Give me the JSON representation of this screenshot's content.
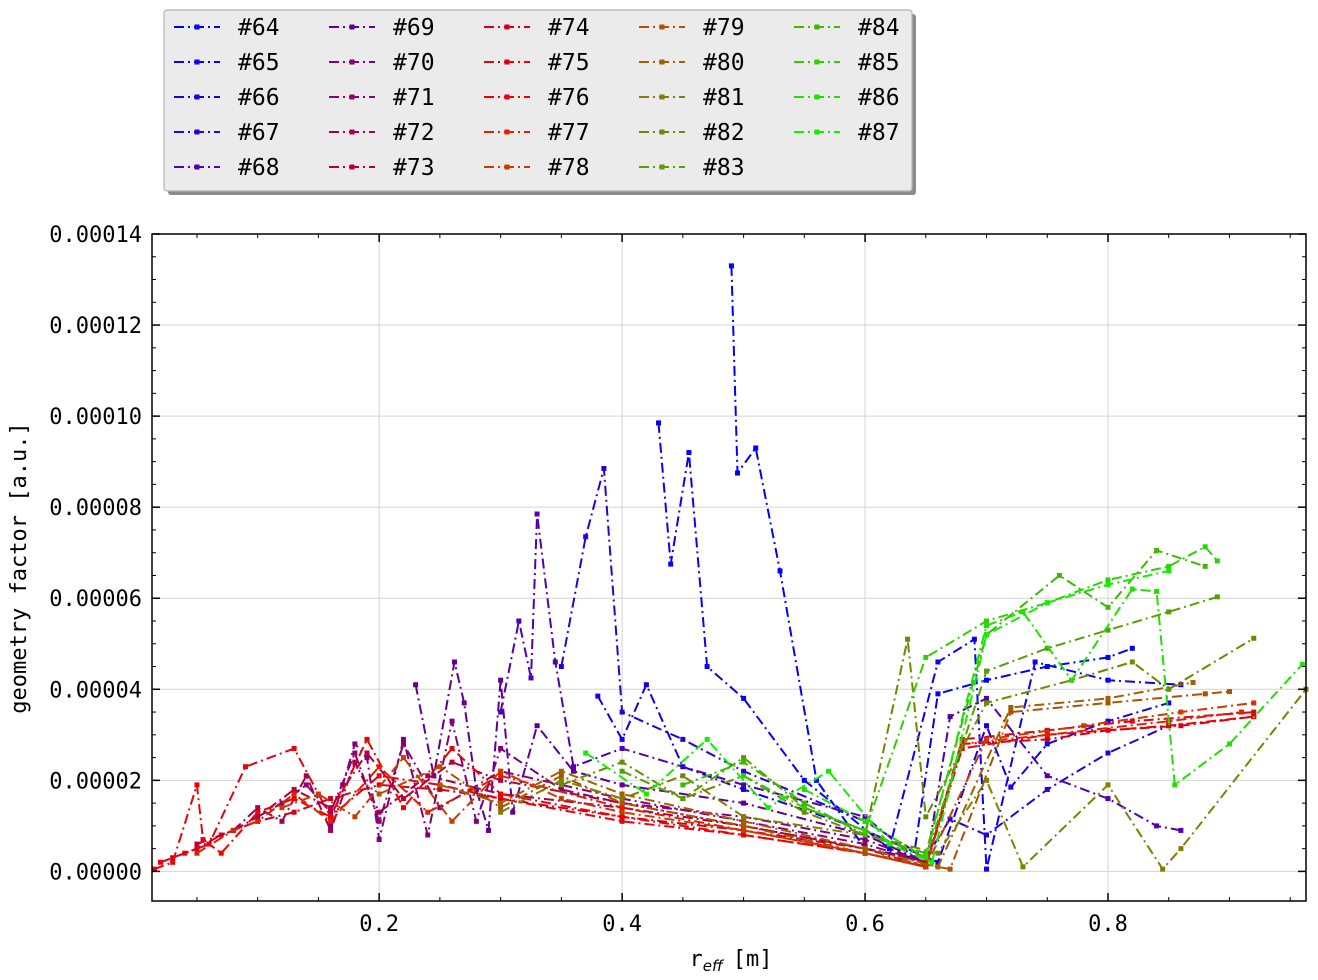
{
  "chart_data": {
    "type": "line",
    "xlabel_main": "r",
    "xlabel_sub": "eff",
    "xlabel_unit": "[m]",
    "ylabel": "geometry factor [a.u.]",
    "xlim": [
      0.013,
      0.963
    ],
    "ylim": [
      -6.5e-06,
      0.00014
    ],
    "x_ticks": [
      0.2,
      0.4,
      0.6,
      0.8
    ],
    "x_tick_labels": [
      "0.2",
      "0.4",
      "0.6",
      "0.8"
    ],
    "y_ticks": [
      0,
      2e-05,
      4e-05,
      6e-05,
      8e-05,
      0.0001,
      0.00012,
      0.00014
    ],
    "y_tick_labels": [
      "0.00000",
      "0.00002",
      "0.00004",
      "0.00006",
      "0.00008",
      "0.00010",
      "0.00012",
      "0.00014"
    ],
    "grid": true,
    "legend_location": "above the plot, top-left, 5 columns",
    "series": [
      {
        "name": "#64",
        "color": "#0000ff",
        "style": "dashdot",
        "x": [
          0.49,
          0.495,
          0.51,
          0.53,
          0.56,
          0.6,
          0.64,
          0.66,
          0.7,
          0.75,
          0.8,
          0.82
        ],
        "y": [
          0.000133,
          8.75e-05,
          9.3e-05,
          6.6e-05,
          2e-05,
          5e-06,
          3e-06,
          3.9e-05,
          4.2e-05,
          4.5e-05,
          4.7e-05,
          4.9e-05
        ]
      },
      {
        "name": "#65",
        "color": "#0a00f5",
        "style": "dashdot",
        "x": [
          0.43,
          0.44,
          0.455,
          0.47,
          0.5,
          0.55,
          0.62,
          0.66,
          0.69,
          0.7,
          0.74,
          0.8,
          0.86
        ],
        "y": [
          9.85e-05,
          6.75e-05,
          9.2e-05,
          4.5e-05,
          3.8e-05,
          2e-05,
          5e-06,
          4.6e-05,
          5.1e-05,
          5e-07,
          4.6e-05,
          4.2e-05,
          4.1e-05
        ]
      },
      {
        "name": "#66",
        "color": "#1500ea",
        "style": "dashdot",
        "x": [
          0.38,
          0.4,
          0.42,
          0.45,
          0.5,
          0.6,
          0.66,
          0.7,
          0.72,
          0.75,
          0.8,
          0.85
        ],
        "y": [
          3.85e-05,
          2.9e-05,
          4.1e-05,
          2.3e-05,
          1.8e-05,
          9e-06,
          2e-06,
          3.2e-05,
          1.85e-05,
          2.8e-05,
          3.3e-05,
          3.7e-05
        ]
      },
      {
        "name": "#67",
        "color": "#2a00d5",
        "style": "dashdot",
        "x": [
          0.35,
          0.37,
          0.385,
          0.4,
          0.45,
          0.5,
          0.6,
          0.65,
          0.67,
          0.7,
          0.75,
          0.8,
          0.85
        ],
        "y": [
          4.5e-05,
          7.35e-05,
          8.85e-05,
          3.5e-05,
          2.9e-05,
          2.2e-05,
          1.1e-05,
          3e-06,
          1.15e-05,
          8e-06,
          1.8e-05,
          2.6e-05,
          3.2e-05
        ]
      },
      {
        "name": "#68",
        "color": "#5000af",
        "style": "dashdot",
        "x": [
          0.3,
          0.315,
          0.325,
          0.33,
          0.345,
          0.36,
          0.4,
          0.5,
          0.6,
          0.65,
          0.67,
          0.7,
          0.75,
          0.8,
          0.84,
          0.86
        ],
        "y": [
          3.5e-05,
          5.5e-05,
          4.25e-05,
          7.85e-05,
          4.6e-05,
          2.3e-05,
          2.7e-05,
          1.9e-05,
          1.2e-05,
          1e-06,
          3.4e-05,
          3.8e-05,
          2.1e-05,
          1.6e-05,
          1e-05,
          9e-06
        ]
      },
      {
        "name": "#69",
        "color": "#600090",
        "style": "dashdot",
        "x": [
          0.23,
          0.245,
          0.262,
          0.27,
          0.28,
          0.29,
          0.3,
          0.31,
          0.33,
          0.36,
          0.4,
          0.5,
          0.6,
          0.65
        ],
        "y": [
          4.1e-05,
          2.1e-05,
          4.6e-05,
          3.7e-05,
          1.8e-05,
          9e-06,
          4.2e-05,
          1.3e-05,
          3.2e-05,
          2.2e-05,
          1.9e-05,
          1.5e-05,
          8e-06,
          2e-06
        ]
      },
      {
        "name": "#70",
        "color": "#800080",
        "style": "dashdot",
        "x": [
          0.16,
          0.17,
          0.18,
          0.19,
          0.2,
          0.22,
          0.24,
          0.26,
          0.28,
          0.3,
          0.35,
          0.4,
          0.5,
          0.6,
          0.65
        ],
        "y": [
          1e-05,
          1.9e-05,
          2.8e-05,
          2.5e-05,
          7e-06,
          2.9e-05,
          8e-06,
          3.3e-05,
          1.1e-05,
          2.7e-05,
          1.8e-05,
          1.5e-05,
          1.2e-05,
          7e-06,
          2e-06
        ]
      },
      {
        "name": "#71",
        "color": "#900070",
        "style": "dashdot",
        "x": [
          0.1,
          0.12,
          0.14,
          0.16,
          0.18,
          0.2,
          0.22,
          0.25,
          0.3,
          0.4,
          0.5,
          0.6,
          0.65
        ],
        "y": [
          1.2e-05,
          1.5e-05,
          1.9e-05,
          1.3e-05,
          2.6e-05,
          1.1e-05,
          2.8e-05,
          1.4e-05,
          2.2e-05,
          1.6e-05,
          1.1e-05,
          6e-06,
          2e-06
        ]
      },
      {
        "name": "#72",
        "color": "#a00055",
        "style": "dashdot",
        "x": [
          0.08,
          0.1,
          0.12,
          0.14,
          0.16,
          0.18,
          0.2,
          0.24,
          0.3,
          0.4,
          0.5,
          0.6,
          0.65
        ],
        "y": [
          9e-06,
          1.4e-05,
          1.1e-05,
          2.1e-05,
          9e-06,
          2.4e-05,
          1.3e-05,
          2.1e-05,
          1.7e-05,
          1.4e-05,
          1e-05,
          5e-06,
          2e-06
        ]
      },
      {
        "name": "#73",
        "color": "#b5003a",
        "style": "dashdot",
        "x": [
          0.05,
          0.08,
          0.1,
          0.13,
          0.16,
          0.19,
          0.22,
          0.26,
          0.3,
          0.4,
          0.5,
          0.6,
          0.65
        ],
        "y": [
          6e-06,
          9e-06,
          1.2e-05,
          1.8e-05,
          1.4e-05,
          2.6e-05,
          1.6e-05,
          2.4e-05,
          2e-05,
          1.5e-05,
          1e-05,
          5e-06,
          2e-06
        ]
      },
      {
        "name": "#74",
        "color": "#d0001a",
        "style": "dashdot",
        "x": [
          0.03,
          0.05,
          0.07,
          0.1,
          0.13,
          0.16,
          0.2,
          0.25,
          0.3,
          0.4,
          0.5,
          0.6,
          0.65,
          0.68,
          0.75,
          0.8,
          0.86,
          0.92
        ],
        "y": [
          3e-06,
          5e-06,
          8e-06,
          1.1e-05,
          1.3e-05,
          1.6e-05,
          1.9e-05,
          1.8e-05,
          1.6e-05,
          1.2e-05,
          9e-06,
          5e-06,
          1e-06,
          2.8e-05,
          2.9e-05,
          3.1e-05,
          3.2e-05,
          3.4e-05
        ]
      },
      {
        "name": "#75",
        "color": "#e60010",
        "style": "dashdot",
        "x": [
          0.02,
          0.04,
          0.06,
          0.09,
          0.13,
          0.16,
          0.2,
          0.25,
          0.3,
          0.4,
          0.5,
          0.6,
          0.65,
          0.68,
          0.75,
          0.82,
          0.92
        ],
        "y": [
          2e-06,
          4e-06,
          6e-06,
          2.3e-05,
          2.7e-05,
          1.2e-05,
          2.1e-05,
          1.9e-05,
          1.6e-05,
          1.1e-05,
          8e-06,
          4e-06,
          1e-06,
          2.9e-05,
          3.1e-05,
          3.3e-05,
          3.5e-05
        ]
      },
      {
        "name": "#76",
        "color": "#f00000",
        "style": "dashdot",
        "x": [
          0.015,
          0.03,
          0.05,
          0.055,
          0.07,
          0.1,
          0.13,
          0.16,
          0.19,
          0.22,
          0.26,
          0.3,
          0.4,
          0.5,
          0.6,
          0.65,
          0.68,
          0.75,
          0.85,
          0.92
        ],
        "y": [
          5e-07,
          2e-06,
          1.9e-05,
          7e-06,
          4e-06,
          1.3e-05,
          1.6e-05,
          1.2e-05,
          2.9e-05,
          1.4e-05,
          2.7e-05,
          1.7e-05,
          1.2e-05,
          8e-06,
          4e-06,
          1e-06,
          2.7e-05,
          3e-05,
          3.2e-05,
          3.4e-05
        ]
      },
      {
        "name": "#77",
        "color": "#e02000",
        "style": "dashdot",
        "x": [
          0.05,
          0.08,
          0.1,
          0.13,
          0.16,
          0.2,
          0.24,
          0.3,
          0.4,
          0.5,
          0.6,
          0.65,
          0.68,
          0.75,
          0.85,
          0.91
        ],
        "y": [
          4e-06,
          9e-06,
          1.1e-05,
          1.7e-05,
          1.1e-05,
          2.3e-05,
          1.3e-05,
          2.1e-05,
          1.4e-05,
          9e-06,
          4e-06,
          1e-06,
          2.8e-05,
          3e-05,
          3.3e-05,
          3.5e-05
        ]
      },
      {
        "name": "#78",
        "color": "#c83c00",
        "style": "dashdot",
        "x": [
          0.12,
          0.15,
          0.18,
          0.22,
          0.26,
          0.3,
          0.35,
          0.4,
          0.5,
          0.6,
          0.65,
          0.7,
          0.78,
          0.86,
          0.92
        ],
        "y": [
          1.4e-05,
          1.7e-05,
          1.2e-05,
          2.5e-05,
          1.1e-05,
          2.2e-05,
          1.6e-05,
          1.3e-05,
          9e-06,
          4e-06,
          1e-06,
          2.9e-05,
          3.2e-05,
          3.5e-05,
          3.7e-05
        ]
      },
      {
        "name": "#79",
        "color": "#b05000",
        "style": "dashdot",
        "x": [
          0.2,
          0.25,
          0.3,
          0.35,
          0.4,
          0.5,
          0.6,
          0.67,
          0.72,
          0.8,
          0.88,
          0.9
        ],
        "y": [
          1.7e-05,
          2.3e-05,
          1.4e-05,
          2.1e-05,
          1.5e-05,
          1e-05,
          4e-06,
          5e-07,
          3.5e-05,
          3.7e-05,
          3.9e-05,
          3.95e-05
        ]
      },
      {
        "name": "#80",
        "color": "#a06000",
        "style": "dashdot",
        "x": [
          0.25,
          0.3,
          0.35,
          0.4,
          0.5,
          0.6,
          0.66,
          0.72,
          0.8,
          0.87
        ],
        "y": [
          1.9e-05,
          1.5e-05,
          2.2e-05,
          1.7e-05,
          1.1e-05,
          5e-06,
          1e-06,
          3.6e-05,
          3.8e-05,
          4.15e-05
        ]
      },
      {
        "name": "#81",
        "color": "#808000",
        "style": "dashdot",
        "x": [
          0.3,
          0.35,
          0.4,
          0.45,
          0.5,
          0.6,
          0.66,
          0.7,
          0.73,
          0.8,
          0.845,
          0.86,
          0.963
        ],
        "y": [
          1.3e-05,
          2e-05,
          1.6e-05,
          2.1e-05,
          1.2e-05,
          8e-06,
          4e-06,
          2e-05,
          1e-06,
          1.9e-05,
          5e-07,
          5e-06,
          4e-05
        ]
      },
      {
        "name": "#82",
        "color": "#6a8a00",
        "style": "dashdot",
        "x": [
          0.35,
          0.4,
          0.45,
          0.5,
          0.55,
          0.6,
          0.635,
          0.65,
          0.7,
          0.77,
          0.82,
          0.85,
          0.92
        ],
        "y": [
          1.9e-05,
          2.4e-05,
          1.6e-05,
          2.1e-05,
          1.3e-05,
          8e-06,
          5.1e-05,
          1.2e-05,
          3.7e-05,
          4.2e-05,
          4.6e-05,
          4e-05,
          5.12e-05
        ]
      },
      {
        "name": "#83",
        "color": "#55a000",
        "style": "dashdot",
        "x": [
          0.4,
          0.45,
          0.5,
          0.55,
          0.6,
          0.65,
          0.7,
          0.75,
          0.8,
          0.85,
          0.89
        ],
        "y": [
          2.2e-05,
          1.6e-05,
          2.5e-05,
          1.4e-05,
          9e-06,
          3e-06,
          4.4e-05,
          4.9e-05,
          5.3e-05,
          5.7e-05,
          6.03e-05
        ]
      },
      {
        "name": "#84",
        "color": "#40b800",
        "style": "dashdot",
        "x": [
          0.45,
          0.5,
          0.55,
          0.6,
          0.65,
          0.7,
          0.76,
          0.8,
          0.84,
          0.88
        ],
        "y": [
          1.9e-05,
          2.4e-05,
          1.5e-05,
          8e-06,
          4e-06,
          5.2e-05,
          6.5e-05,
          5.8e-05,
          7.05e-05,
          6.7e-05
        ]
      },
      {
        "name": "#85",
        "color": "#30d000",
        "style": "dashdot",
        "x": [
          0.5,
          0.55,
          0.6,
          0.65,
          0.7,
          0.75,
          0.8,
          0.85,
          0.88,
          0.89
        ],
        "y": [
          2.1e-05,
          1.4e-05,
          9e-06,
          4.7e-05,
          5.5e-05,
          5.9e-05,
          6.4e-05,
          6.7e-05,
          7.13e-05,
          6.82e-05
        ]
      },
      {
        "name": "#86",
        "color": "#20e000",
        "style": "dashdot",
        "x": [
          0.55,
          0.6,
          0.65,
          0.7,
          0.73,
          0.77,
          0.82,
          0.84,
          0.855,
          0.9,
          0.96
        ],
        "y": [
          1.8e-05,
          1.1e-05,
          3e-06,
          5.4e-05,
          5.7e-05,
          4.2e-05,
          6.2e-05,
          6.15e-05,
          1.9e-05,
          2.8e-05,
          4.55e-05
        ]
      },
      {
        "name": "#87",
        "color": "#10f000",
        "style": "dashdot",
        "x": [
          0.37,
          0.42,
          0.47,
          0.52,
          0.57,
          0.62,
          0.655,
          0.7,
          0.75,
          0.8,
          0.85
        ],
        "y": [
          2.6e-05,
          1.7e-05,
          2.9e-05,
          1.4e-05,
          2.2e-05,
          6e-06,
          2e-06,
          5.2e-05,
          5.9e-05,
          6.3e-05,
          6.6e-05
        ]
      }
    ]
  }
}
